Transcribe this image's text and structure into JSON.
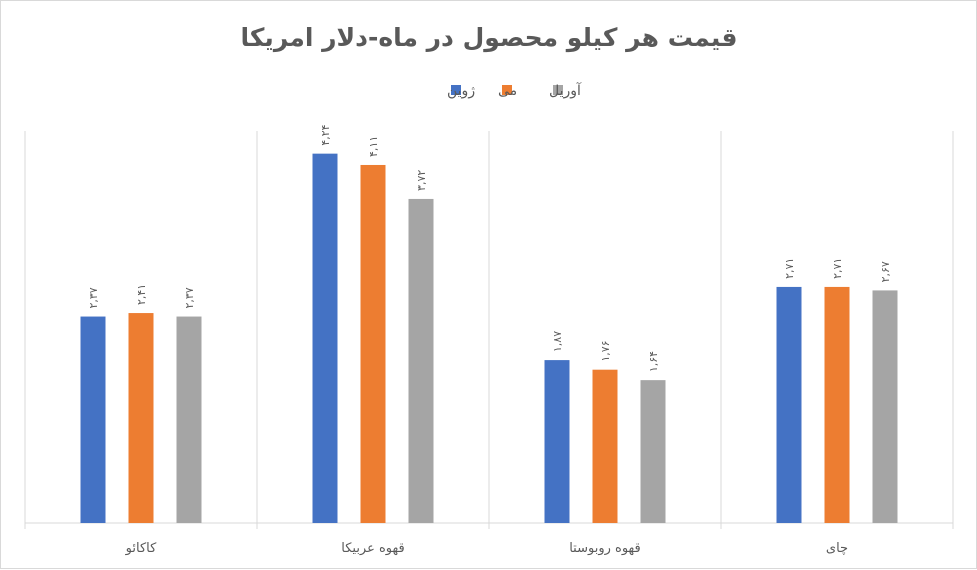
{
  "chart_data": {
    "type": "bar",
    "title": "قیمت هر کیلو محصول در ماه-دلار امریکا",
    "categories": [
      "کاکائو",
      "قهوه عربیکا",
      "قهوه روبوستا",
      "چای"
    ],
    "series": [
      {
        "name": "ژوین",
        "color": "#4472c4",
        "values": [
          2.37,
          4.24,
          1.87,
          2.71
        ],
        "labels": [
          "۲,۳۷",
          "۴,۲۴",
          "۱,۸۷",
          "۲,۷۱"
        ]
      },
      {
        "name": "می",
        "color": "#ed7d31",
        "values": [
          2.41,
          4.11,
          1.76,
          2.71
        ],
        "labels": [
          "۲,۴۱",
          "۴,۱۱",
          "۱,۷۶",
          "۲,۷۱"
        ]
      },
      {
        "name": "آوریل",
        "color": "#a5a5a5",
        "values": [
          2.37,
          3.72,
          1.64,
          2.67
        ],
        "labels": [
          "۲,۳۷",
          "۳,۷۲",
          "۱,۶۴",
          "۲,۶۷"
        ]
      }
    ],
    "ylim": [
      0,
      4.5
    ],
    "grid": false,
    "legend": "top-center"
  }
}
